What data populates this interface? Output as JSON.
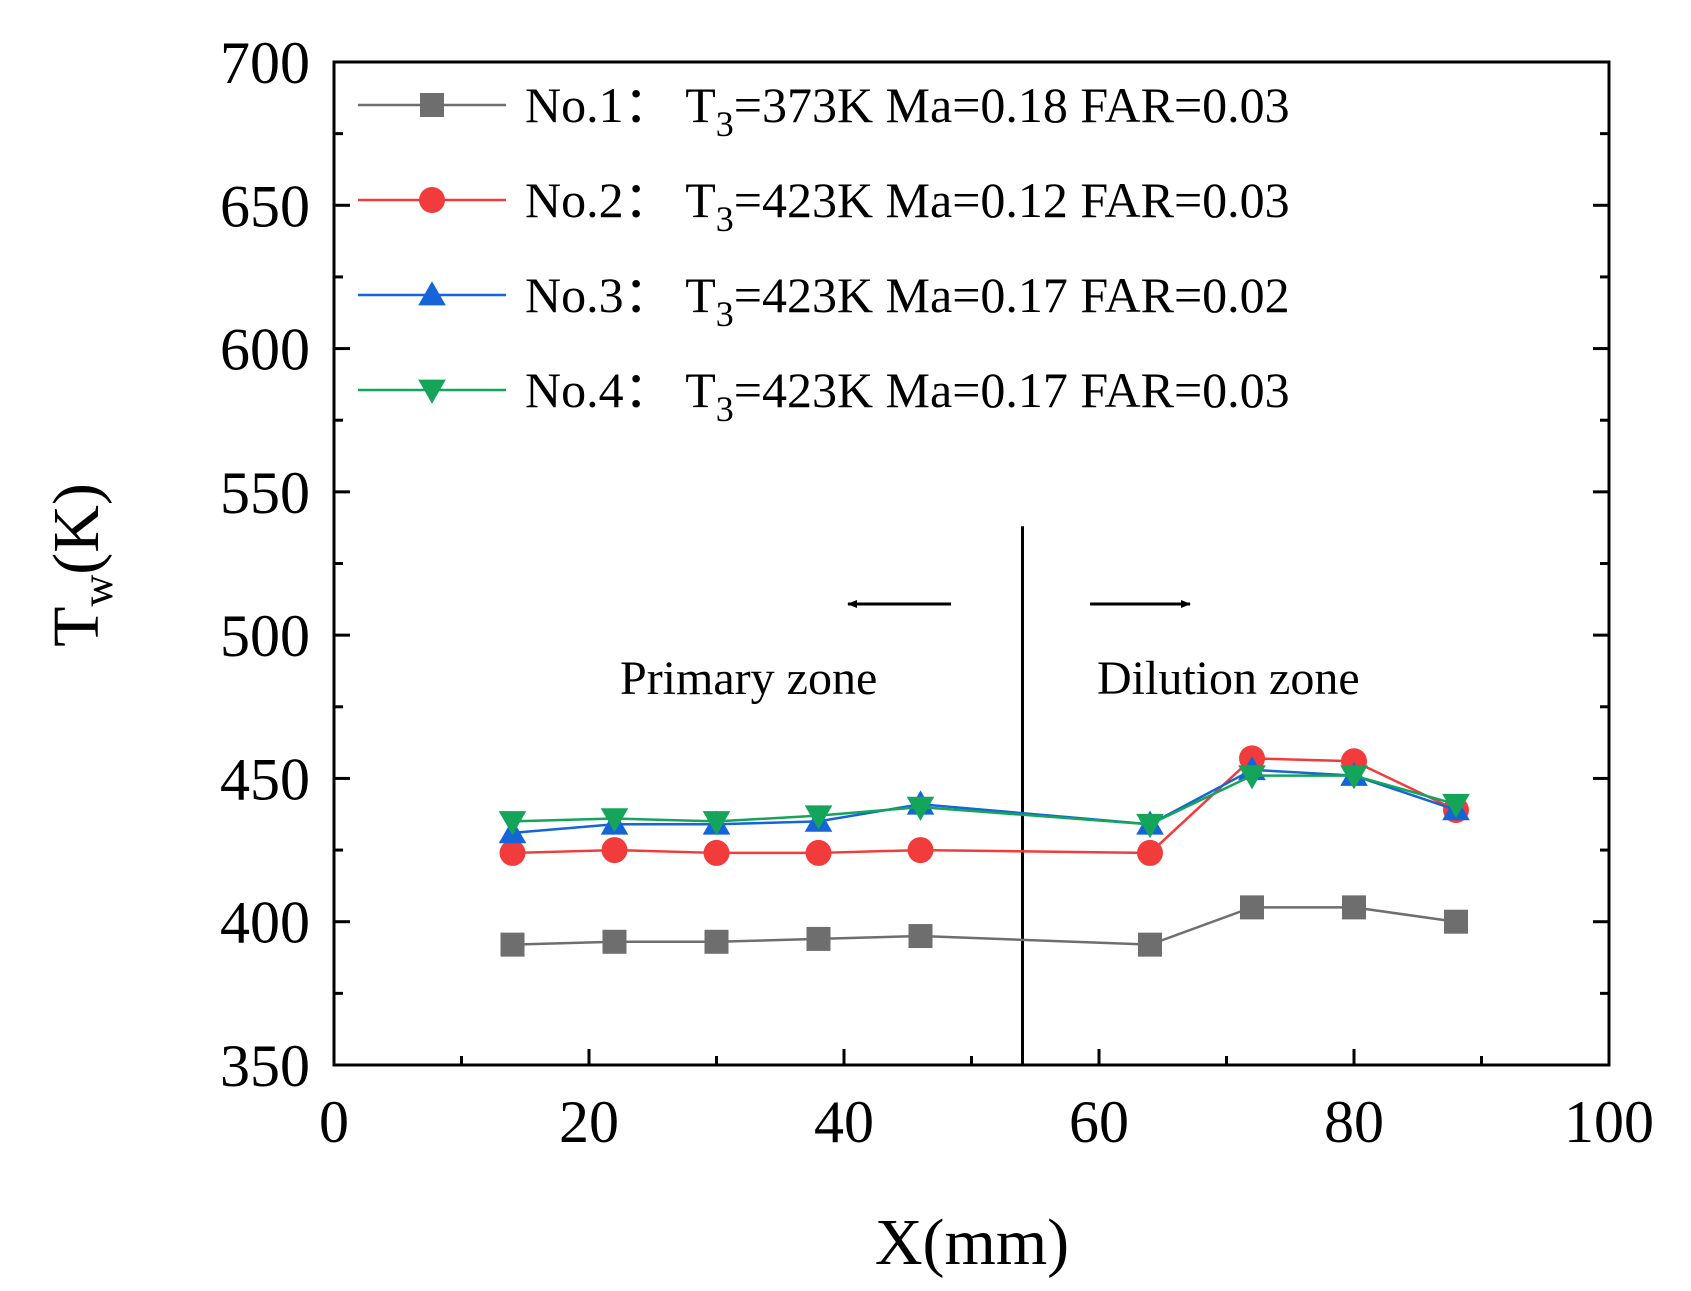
{
  "chart_data": {
    "type": "line",
    "title": "",
    "xlabel": "X(mm)",
    "ylabel_main": "T",
    "ylabel_sub": "w",
    "ylabel_unit": "(K)",
    "xlim": [
      0,
      100
    ],
    "ylim": [
      350,
      700
    ],
    "xticks": [
      0,
      20,
      40,
      60,
      80,
      100
    ],
    "yticks": [
      350,
      400,
      450,
      500,
      550,
      600,
      650,
      700
    ],
    "grid": false,
    "legend_position": "top",
    "series": [
      {
        "name": "No.1",
        "label_prefix": "No.1： T",
        "label_sub": "3",
        "label_suffix": "=373K Ma=0.18 FAR=0.03",
        "color": "#6e6e6e",
        "marker": "square",
        "x": [
          14,
          22,
          30,
          38,
          46,
          64,
          72,
          80,
          88
        ],
        "y": [
          392,
          393,
          393,
          394,
          395,
          392,
          405,
          405,
          400
        ]
      },
      {
        "name": "No.2",
        "label_prefix": "No.2： T",
        "label_sub": "3",
        "label_suffix": "=423K Ma=0.12 FAR=0.03",
        "color": "#f23b3b",
        "marker": "circle",
        "x": [
          14,
          22,
          30,
          38,
          46,
          64,
          72,
          80,
          88
        ],
        "y": [
          424,
          425,
          424,
          424,
          425,
          424,
          457,
          456,
          439
        ]
      },
      {
        "name": "No.3",
        "label_prefix": "No.3： T",
        "label_sub": "3",
        "label_suffix": "=423K Ma=0.17 FAR=0.02",
        "color": "#1565d8",
        "marker": "triangle-up",
        "x": [
          14,
          22,
          30,
          38,
          46,
          64,
          72,
          80,
          88
        ],
        "y": [
          431,
          434,
          434,
          435,
          441,
          434,
          453,
          451,
          439
        ]
      },
      {
        "name": "No.4",
        "label_prefix": "No.4： T",
        "label_sub": "3",
        "label_suffix": "=423K Ma=0.17 FAR=0.03",
        "color": "#14a55a",
        "marker": "triangle-down",
        "x": [
          14,
          22,
          30,
          38,
          46,
          64,
          72,
          80,
          88
        ],
        "y": [
          435,
          436,
          435,
          437,
          440,
          434,
          451,
          451,
          441
        ]
      }
    ],
    "annotations": {
      "divider_x": 54,
      "divider_y_top": 538,
      "primary_zone_label": "Primary zone",
      "dilution_zone_label": "Dilution zone",
      "primary_arrow_direction": "left",
      "dilution_arrow_direction": "right"
    }
  }
}
